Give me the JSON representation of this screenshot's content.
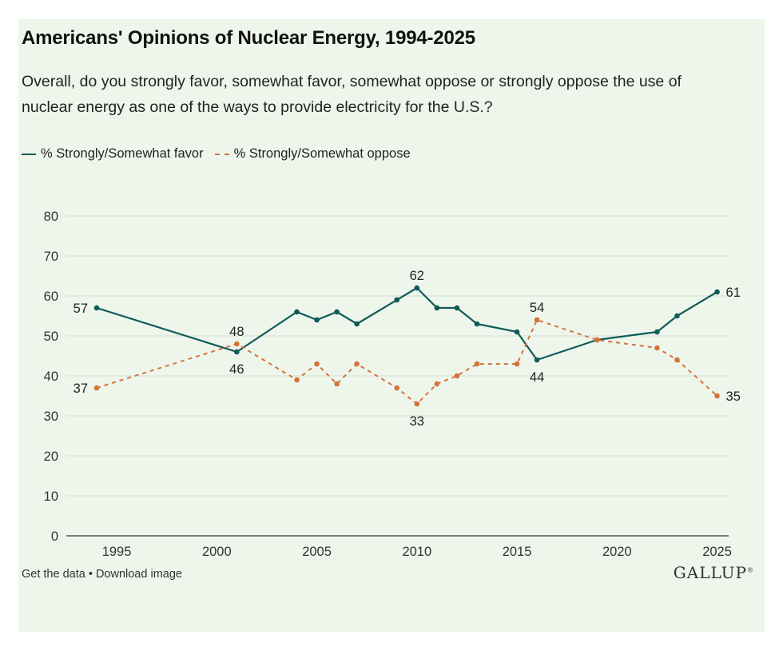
{
  "chart_data": {
    "type": "line",
    "title": "Americans' Opinions of Nuclear Energy, 1994-2025",
    "subtitle": "Overall, do you strongly favor, somewhat favor, somewhat oppose or strongly oppose the use of nuclear energy as one of the ways to provide electricity for the U.S.?",
    "xlabel": "",
    "ylabel": "",
    "xlim": [
      1993,
      2025.5
    ],
    "ylim": [
      0,
      80
    ],
    "x_ticks": [
      1995,
      2000,
      2005,
      2010,
      2015,
      2020,
      2025
    ],
    "y_ticks": [
      0,
      10,
      20,
      30,
      40,
      50,
      60,
      70,
      80
    ],
    "legend_position": "top-left",
    "series": [
      {
        "name": "% Strongly/Somewhat favor",
        "color": "#0f5b57",
        "style": "solid",
        "points": [
          {
            "x": 1994,
            "y": 57,
            "label": "57"
          },
          {
            "x": 2001,
            "y": 46,
            "label": "46"
          },
          {
            "x": 2004,
            "y": 56
          },
          {
            "x": 2005,
            "y": 54
          },
          {
            "x": 2006,
            "y": 56
          },
          {
            "x": 2007,
            "y": 53
          },
          {
            "x": 2009,
            "y": 59
          },
          {
            "x": 2010,
            "y": 62,
            "label": "62"
          },
          {
            "x": 2011,
            "y": 57
          },
          {
            "x": 2012,
            "y": 57
          },
          {
            "x": 2013,
            "y": 53
          },
          {
            "x": 2015,
            "y": 51
          },
          {
            "x": 2016,
            "y": 44,
            "label": "44"
          },
          {
            "x": 2019,
            "y": 49
          },
          {
            "x": 2022,
            "y": 51
          },
          {
            "x": 2023,
            "y": 55
          },
          {
            "x": 2025,
            "y": 61,
            "label": "61"
          }
        ]
      },
      {
        "name": "% Strongly/Somewhat oppose",
        "color": "#d4743b",
        "style": "dashed",
        "points": [
          {
            "x": 1994,
            "y": 37,
            "label": "37"
          },
          {
            "x": 2001,
            "y": 48,
            "label": "48"
          },
          {
            "x": 2004,
            "y": 39
          },
          {
            "x": 2005,
            "y": 43
          },
          {
            "x": 2006,
            "y": 38
          },
          {
            "x": 2007,
            "y": 43
          },
          {
            "x": 2009,
            "y": 37
          },
          {
            "x": 2010,
            "y": 33,
            "label": "33"
          },
          {
            "x": 2011,
            "y": 38
          },
          {
            "x": 2012,
            "y": 40
          },
          {
            "x": 2013,
            "y": 43
          },
          {
            "x": 2015,
            "y": 43
          },
          {
            "x": 2016,
            "y": 54,
            "label": "54"
          },
          {
            "x": 2019,
            "y": 49
          },
          {
            "x": 2022,
            "y": 47
          },
          {
            "x": 2023,
            "y": 44
          },
          {
            "x": 2025,
            "y": 35,
            "label": "35"
          }
        ]
      }
    ]
  },
  "footer": {
    "get_data": "Get the data",
    "separator": "•",
    "download": "Download image",
    "logo": "GALLUP",
    "logo_mark": "®"
  },
  "colors": {
    "background": "#eef6ec",
    "grid": "#d6ddd4",
    "axis": "#333333"
  }
}
